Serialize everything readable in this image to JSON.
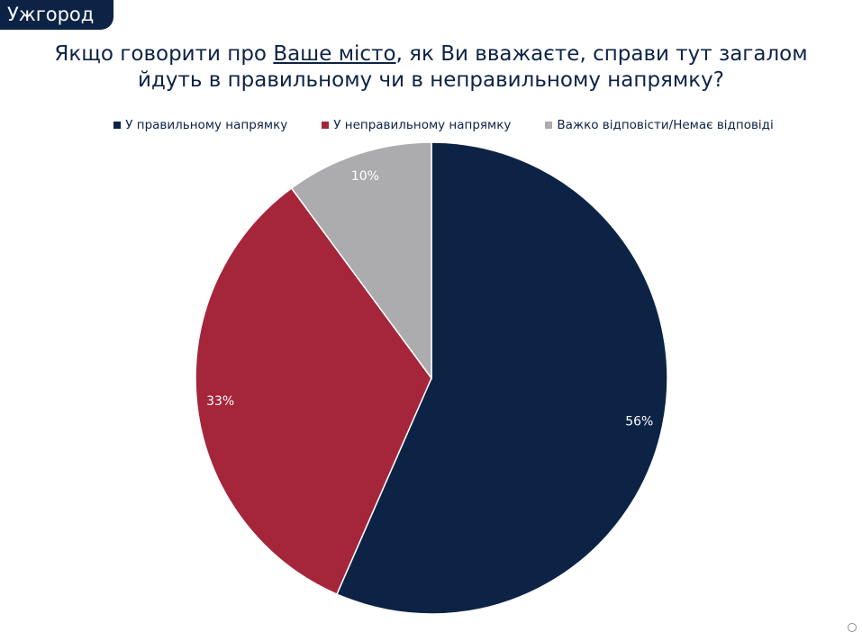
{
  "header": {
    "city": "Ужгород"
  },
  "title": {
    "before": "Якщо говорити про ",
    "underlined": "Ваше місто",
    "after": ", як Ви вважаєте, справи тут загалом",
    "line2": "йдуть в правильному чи в неправильному напрямку?"
  },
  "chart_data": {
    "type": "pie",
    "title": "",
    "categories": [
      "У правильному напрямку",
      "У неправильному напрямку",
      "Важко відповісти/Немає відповіді"
    ],
    "values": [
      56,
      33,
      10
    ],
    "labels": [
      "56%",
      "33%",
      "10%"
    ],
    "colors": [
      "#0d2346",
      "#a5263a",
      "#acacae"
    ],
    "legend": "top"
  }
}
